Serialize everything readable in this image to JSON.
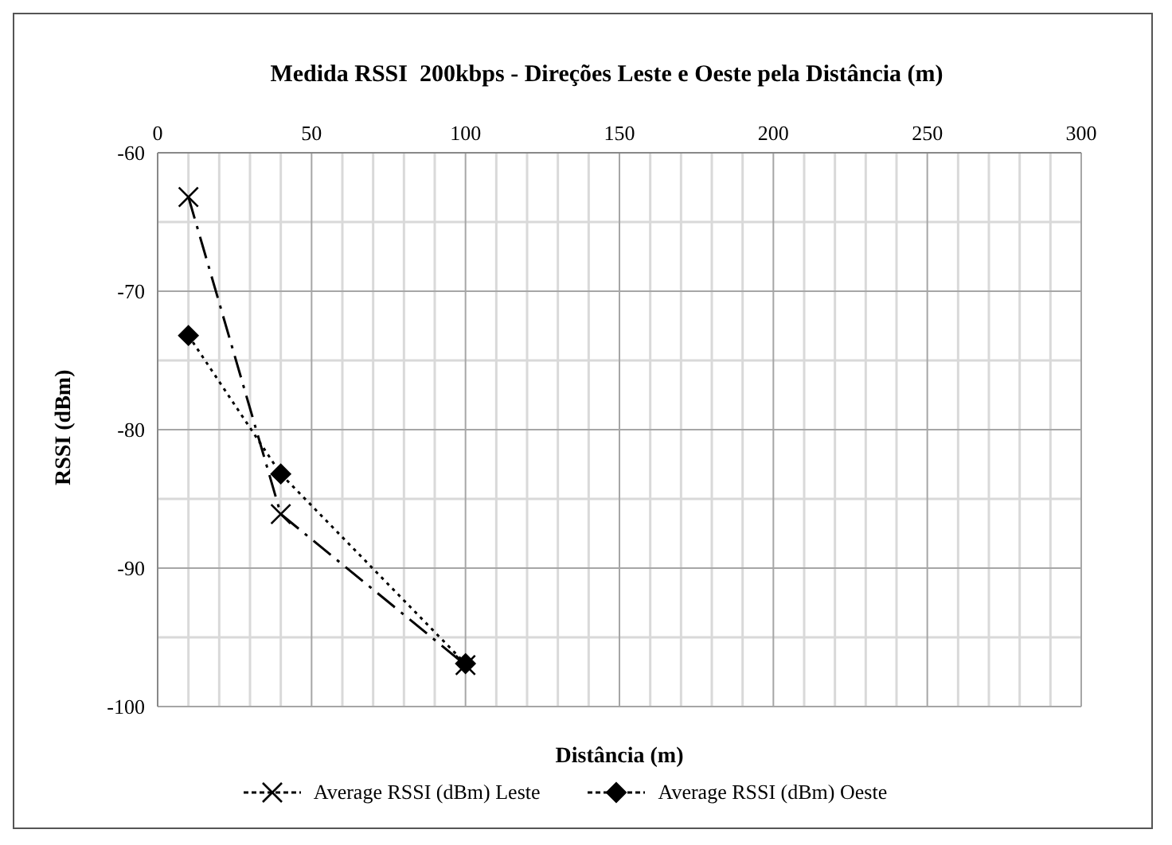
{
  "chart_data": {
    "type": "line",
    "title": "Medida RSSI  200kbps - Direções Leste e Oeste pela Distância (m)",
    "xlabel": "Distância (m)",
    "ylabel": "RSSI (dBm)",
    "x": [
      10,
      40,
      100
    ],
    "series": [
      {
        "name": "Average RSSI (dBm) Leste",
        "color": "#000000",
        "values": [
          -63.2,
          -86.1,
          -97.0
        ],
        "marker": "cross",
        "line_style": "dashed"
      },
      {
        "name": "Average RSSI (dBm) Oeste",
        "color": "#000000",
        "values": [
          -73.2,
          -83.2,
          -96.9
        ],
        "marker": "diamond",
        "line_style": "dotted"
      }
    ],
    "xlim": [
      0,
      300
    ],
    "xticks": [
      0,
      50,
      100,
      150,
      200,
      250,
      300
    ],
    "ylim": [
      -100,
      -60
    ],
    "yticks": [
      -100,
      -90,
      -80,
      -70,
      -60
    ],
    "grid": true,
    "legend": "bottom"
  }
}
